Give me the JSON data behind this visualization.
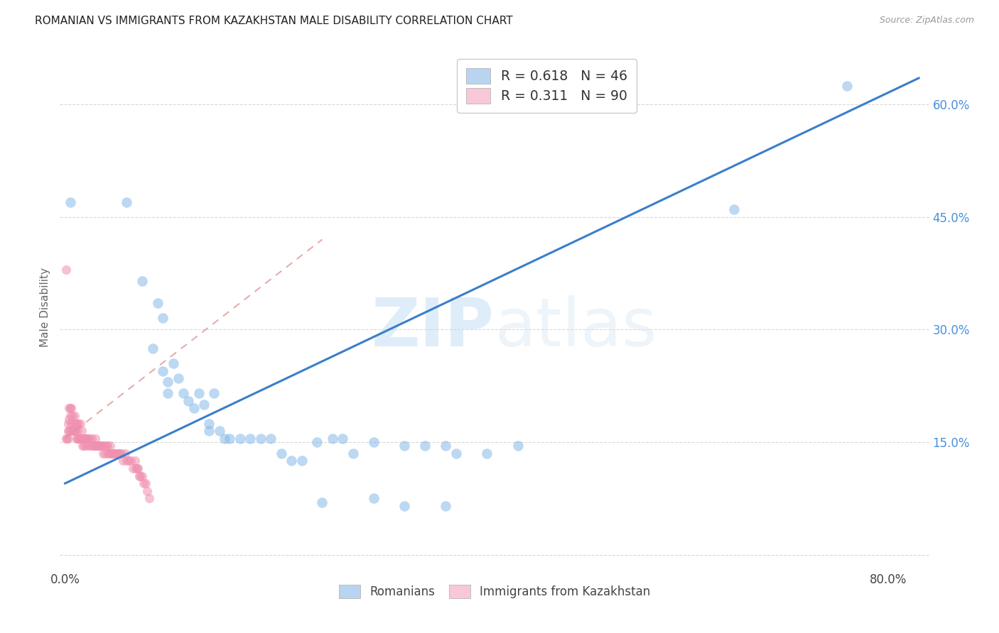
{
  "title": "ROMANIAN VS IMMIGRANTS FROM KAZAKHSTAN MALE DISABILITY CORRELATION CHART",
  "source": "Source: ZipAtlas.com",
  "ylabel": "Male Disability",
  "xlim": [
    -0.005,
    0.84
  ],
  "ylim": [
    -0.02,
    0.68
  ],
  "x_tick_pos": [
    0.0,
    0.1,
    0.2,
    0.3,
    0.4,
    0.5,
    0.6,
    0.7,
    0.8
  ],
  "x_tick_labels": [
    "0.0%",
    "",
    "",
    "",
    "",
    "",
    "",
    "",
    "80.0%"
  ],
  "y_tick_pos": [
    0.0,
    0.15,
    0.3,
    0.45,
    0.6
  ],
  "y_tick_labels_right": [
    "",
    "15.0%",
    "30.0%",
    "45.0%",
    "60.0%"
  ],
  "legend_entries": [
    {
      "label": "R = 0.618   N = 46",
      "color": "#b8d4f0"
    },
    {
      "label": "R = 0.311   N = 90",
      "color": "#f8c8d8"
    }
  ],
  "legend_labels_bottom": [
    "Romanians",
    "Immigrants from Kazakhstan"
  ],
  "blue_scatter_x": [
    0.005,
    0.06,
    0.075,
    0.09,
    0.085,
    0.095,
    0.105,
    0.095,
    0.1,
    0.11,
    0.1,
    0.115,
    0.13,
    0.135,
    0.145,
    0.12,
    0.125,
    0.14,
    0.14,
    0.15,
    0.155,
    0.16,
    0.17,
    0.18,
    0.19,
    0.2,
    0.21,
    0.22,
    0.23,
    0.245,
    0.26,
    0.27,
    0.28,
    0.3,
    0.33,
    0.37,
    0.41,
    0.44,
    0.35,
    0.38,
    0.25,
    0.3,
    0.33,
    0.37,
    0.65,
    0.76
  ],
  "blue_scatter_y": [
    0.47,
    0.47,
    0.365,
    0.335,
    0.275,
    0.315,
    0.255,
    0.245,
    0.23,
    0.235,
    0.215,
    0.215,
    0.215,
    0.2,
    0.215,
    0.205,
    0.195,
    0.175,
    0.165,
    0.165,
    0.155,
    0.155,
    0.155,
    0.155,
    0.155,
    0.155,
    0.135,
    0.125,
    0.125,
    0.15,
    0.155,
    0.155,
    0.135,
    0.15,
    0.145,
    0.145,
    0.135,
    0.145,
    0.145,
    0.135,
    0.07,
    0.075,
    0.065,
    0.065,
    0.46,
    0.625
  ],
  "pink_scatter_x": [
    0.001,
    0.001,
    0.002,
    0.003,
    0.003,
    0.003,
    0.004,
    0.004,
    0.004,
    0.005,
    0.005,
    0.005,
    0.006,
    0.006,
    0.007,
    0.007,
    0.008,
    0.008,
    0.009,
    0.009,
    0.01,
    0.01,
    0.011,
    0.011,
    0.012,
    0.012,
    0.013,
    0.013,
    0.014,
    0.015,
    0.015,
    0.016,
    0.016,
    0.017,
    0.017,
    0.018,
    0.018,
    0.019,
    0.02,
    0.02,
    0.021,
    0.022,
    0.023,
    0.024,
    0.025,
    0.026,
    0.027,
    0.028,
    0.029,
    0.03,
    0.031,
    0.032,
    0.033,
    0.034,
    0.035,
    0.036,
    0.037,
    0.038,
    0.039,
    0.04,
    0.041,
    0.042,
    0.043,
    0.044,
    0.045,
    0.046,
    0.047,
    0.048,
    0.05,
    0.051,
    0.052,
    0.053,
    0.055,
    0.056,
    0.058,
    0.06,
    0.062,
    0.064,
    0.066,
    0.068,
    0.069,
    0.07,
    0.071,
    0.072,
    0.073,
    0.075,
    0.076,
    0.078,
    0.08,
    0.082
  ],
  "pink_scatter_y": [
    0.38,
    0.155,
    0.155,
    0.175,
    0.165,
    0.155,
    0.195,
    0.18,
    0.165,
    0.195,
    0.185,
    0.165,
    0.195,
    0.175,
    0.185,
    0.165,
    0.175,
    0.165,
    0.185,
    0.165,
    0.175,
    0.165,
    0.175,
    0.155,
    0.165,
    0.155,
    0.175,
    0.155,
    0.155,
    0.175,
    0.155,
    0.165,
    0.155,
    0.155,
    0.145,
    0.155,
    0.145,
    0.155,
    0.155,
    0.145,
    0.155,
    0.155,
    0.145,
    0.155,
    0.145,
    0.155,
    0.145,
    0.145,
    0.155,
    0.145,
    0.145,
    0.145,
    0.145,
    0.145,
    0.145,
    0.145,
    0.135,
    0.145,
    0.135,
    0.145,
    0.145,
    0.135,
    0.135,
    0.145,
    0.135,
    0.135,
    0.135,
    0.135,
    0.135,
    0.135,
    0.135,
    0.135,
    0.135,
    0.125,
    0.135,
    0.125,
    0.125,
    0.125,
    0.115,
    0.125,
    0.115,
    0.115,
    0.115,
    0.105,
    0.105,
    0.105,
    0.095,
    0.095,
    0.085,
    0.075
  ],
  "blue_line_x": [
    0.0,
    0.83
  ],
  "blue_line_y": [
    0.095,
    0.635
  ],
  "pink_line_x": [
    0.0,
    0.25
  ],
  "pink_line_y": [
    0.155,
    0.42
  ],
  "blue_color": "#85b8e8",
  "pink_color": "#f090b0",
  "blue_line_color": "#3a7fc8",
  "pink_line_color": "#e09090",
  "watermark_zip": "ZIP",
  "watermark_atlas": "atlas",
  "background_color": "#ffffff",
  "grid_color": "#d8d8d8"
}
